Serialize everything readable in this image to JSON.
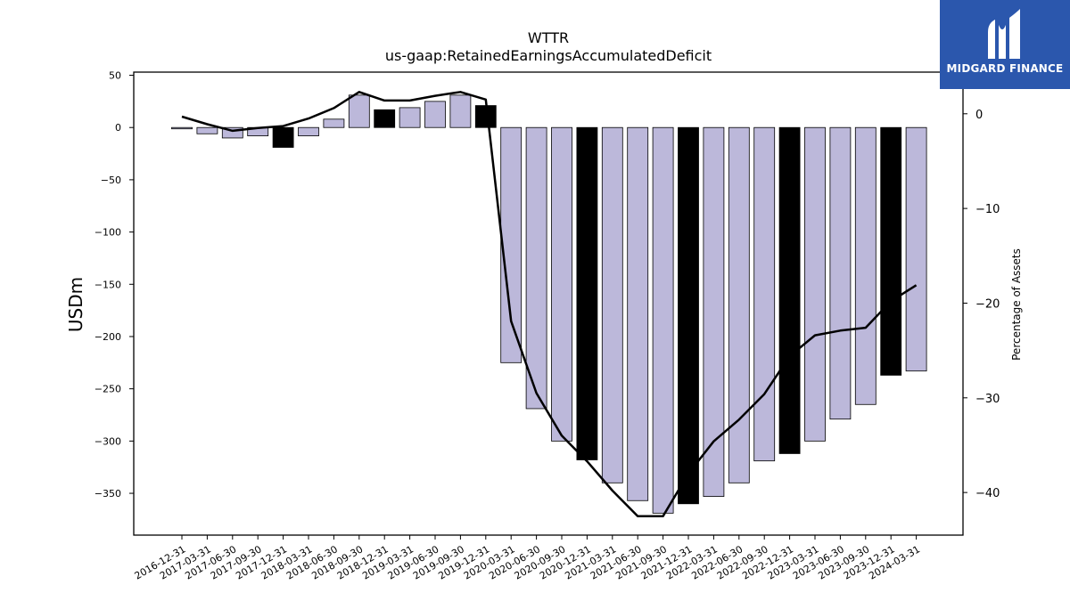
{
  "chart_data": {
    "type": "bar",
    "title": "WTTR",
    "subtitle": "us-gaap:RetainedEarningsAccumulatedDeficit",
    "ylabel": "USDm",
    "y2label": "Percentage of Assets",
    "ylim": [
      -390,
      53
    ],
    "y2lim": [
      -44.5,
      4.4
    ],
    "yticks": [
      50,
      0,
      -50,
      -100,
      -150,
      -200,
      -250,
      -300,
      -350
    ],
    "y2ticks": [
      0,
      -10,
      -20,
      -30,
      -40
    ],
    "categories": [
      "2016-12-31",
      "2017-03-31",
      "2017-06-30",
      "2017-09-30",
      "2017-12-31",
      "2018-03-31",
      "2018-06-30",
      "2018-09-30",
      "2018-12-31",
      "2019-03-31",
      "2019-06-30",
      "2019-09-30",
      "2019-12-31",
      "2020-03-31",
      "2020-06-30",
      "2020-09-30",
      "2020-12-31",
      "2021-03-31",
      "2021-06-30",
      "2021-09-30",
      "2021-12-31",
      "2022-03-31",
      "2022-06-30",
      "2022-09-30",
      "2022-12-31",
      "2023-03-31",
      "2023-06-30",
      "2023-09-30",
      "2023-12-31",
      "2024-03-31"
    ],
    "series": [
      {
        "type": "bar",
        "values": [
          -1,
          -6,
          -10,
          -8,
          -19,
          -8,
          8,
          31,
          17,
          19,
          25,
          31,
          21,
          -225,
          -269,
          -300,
          -318,
          -340,
          -357,
          -369,
          -360,
          -353,
          -340,
          -319,
          -312,
          -300,
          -279,
          -265,
          -237,
          -233
        ],
        "highlight": [
          false,
          false,
          false,
          false,
          true,
          false,
          false,
          false,
          true,
          false,
          false,
          false,
          true,
          false,
          false,
          false,
          true,
          false,
          false,
          false,
          true,
          false,
          false,
          false,
          true,
          false,
          false,
          false,
          true,
          false
        ]
      },
      {
        "type": "line",
        "axis": "right",
        "values": [
          -0.3,
          -1.1,
          -1.8,
          -1.5,
          -1.3,
          -0.5,
          0.6,
          2.3,
          1.4,
          1.4,
          1.9,
          2.3,
          1.5,
          -21.9,
          -29.5,
          -34.0,
          -36.7,
          -39.8,
          -42.5,
          -42.5,
          -38.0,
          -34.6,
          -32.3,
          -29.6,
          -25.6,
          -23.4,
          -22.9,
          -22.6,
          -19.8,
          -18.1
        ]
      }
    ],
    "colors": {
      "bar": "#bcb8da",
      "highlight": "#000000",
      "line": "#000000",
      "edge": "#000000"
    },
    "grid": false
  },
  "brand": {
    "name": "MIDGARD FINANCE",
    "color": "#2b57ad"
  }
}
